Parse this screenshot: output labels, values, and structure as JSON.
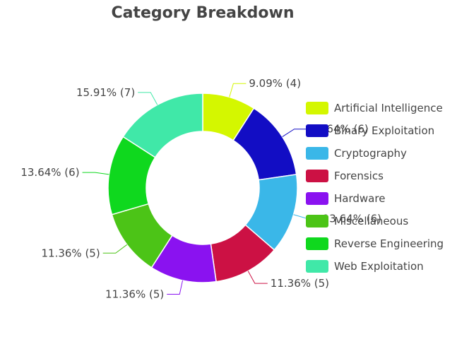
{
  "chart_data": {
    "type": "pie",
    "hole": true,
    "title": "Category Breakdown",
    "legend_position": "right",
    "slices": [
      {
        "category": "Artificial Intelligence",
        "value": 4,
        "label": "9.09% (4)",
        "color": "#d4f700"
      },
      {
        "category": "Binary Exploitation",
        "value": 6,
        "label": "13.64% (6)",
        "color": "#120dc4"
      },
      {
        "category": "Cryptography",
        "value": 6,
        "label": "13.64% (6)",
        "color": "#3ab7e8"
      },
      {
        "category": "Forensics",
        "value": 5,
        "label": "11.36% (5)",
        "color": "#cc1144"
      },
      {
        "category": "Hardware",
        "value": 5,
        "label": "11.36% (5)",
        "color": "#8a12f0"
      },
      {
        "category": "Miscellaneous",
        "value": 5,
        "label": "11.36% (5)",
        "color": "#4cc417"
      },
      {
        "category": "Reverse Engineering",
        "value": 6,
        "label": "13.64% (6)",
        "color": "#0fd81e"
      },
      {
        "category": "Web Exploitation",
        "value": 7,
        "label": "15.91% (7)",
        "color": "#40e8a8"
      }
    ]
  }
}
